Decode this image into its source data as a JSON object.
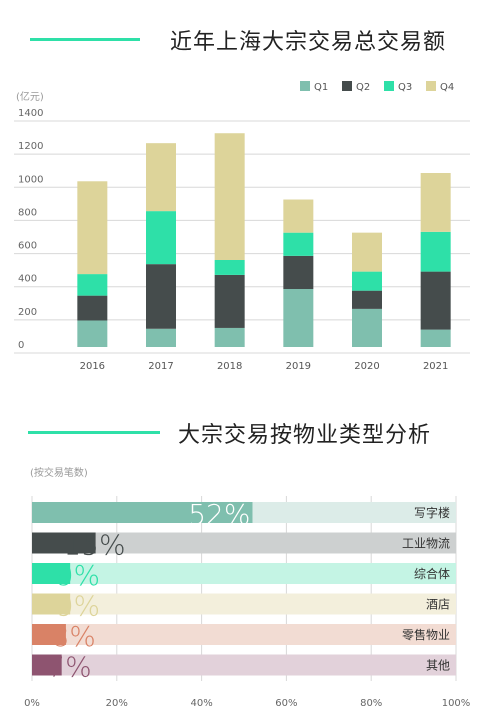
{
  "sections": {
    "top_title": "近年上海大宗交易总交易额",
    "bottom_title": "大宗交易按物业类型分析"
  },
  "colors": {
    "accent": "#2ee0a8"
  },
  "chart_data": [
    {
      "type": "bar",
      "stacked": true,
      "title": "近年上海大宗交易总交易额",
      "unit_label": "(亿元)",
      "categories": [
        "2016",
        "2017",
        "2018",
        "2019",
        "2020",
        "2021"
      ],
      "ylim": [
        0,
        1400
      ],
      "yticks": [
        0,
        200,
        400,
        600,
        800,
        1000,
        1200,
        1400
      ],
      "grid": true,
      "legend": "top-right",
      "series": [
        {
          "name": "Q1",
          "color": "#7fbfae",
          "values": [
            160,
            110,
            115,
            350,
            230,
            105
          ]
        },
        {
          "name": "Q2",
          "color": "#454c4c",
          "values": [
            150,
            390,
            320,
            200,
            110,
            350
          ]
        },
        {
          "name": "Q3",
          "color": "#2ee0a8",
          "values": [
            130,
            320,
            90,
            140,
            115,
            240
          ]
        },
        {
          "name": "Q4",
          "color": "#ddd49a",
          "values": [
            560,
            410,
            765,
            200,
            235,
            355
          ]
        }
      ]
    },
    {
      "type": "bar",
      "orientation": "horizontal",
      "title": "大宗交易按物业类型分析",
      "unit_label": "(按交易笔数)",
      "xlim": [
        0,
        100
      ],
      "xticks": [
        "0%",
        "20%",
        "40%",
        "60%",
        "80%",
        "100%"
      ],
      "grid": true,
      "categories": [
        "写字楼",
        "工业物流",
        "综合体",
        "酒店",
        "零售物业",
        "其他"
      ],
      "values": [
        52,
        15,
        9,
        9,
        8,
        7
      ],
      "value_labels": [
        "52%",
        "15%",
        "9%",
        "9%",
        "8%",
        "7%"
      ],
      "colors": [
        "#7fbfae",
        "#454c4c",
        "#2ee0a8",
        "#ddd49a",
        "#d98266",
        "#8e5470"
      ],
      "track_colors": [
        "#dcece8",
        "#cdd0d0",
        "#c4f4e4",
        "#f3efdc",
        "#f2dcd3",
        "#e2d1da"
      ]
    }
  ]
}
